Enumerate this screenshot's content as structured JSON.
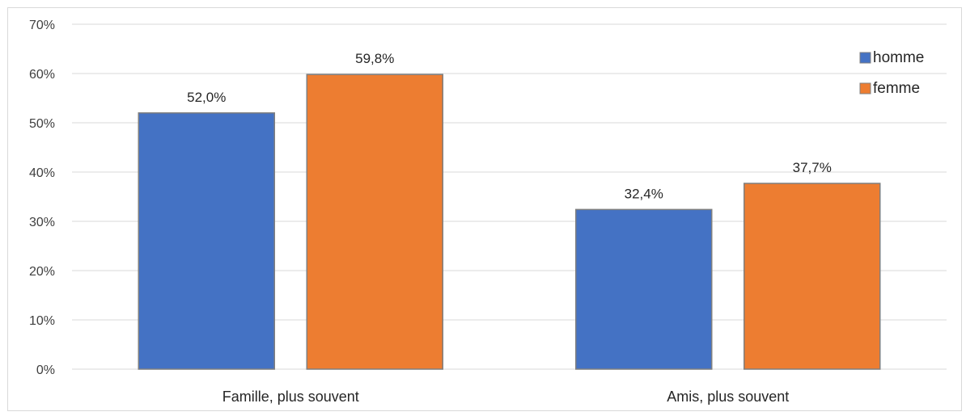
{
  "chart_data": {
    "type": "bar",
    "categories": [
      "Famille, plus souvent",
      "Amis, plus souvent"
    ],
    "series": [
      {
        "name": "homme",
        "values": [
          52.0,
          32.4
        ],
        "labels": [
          "52,0%",
          "32,4%"
        ],
        "color": "#4472C4"
      },
      {
        "name": "femme",
        "values": [
          59.8,
          37.7
        ],
        "labels": [
          "59,8%",
          "37,7%"
        ],
        "color": "#ED7D31"
      }
    ],
    "y_ticks": [
      "0%",
      "10%",
      "20%",
      "30%",
      "40%",
      "50%",
      "60%",
      "70%"
    ],
    "ylim": [
      0,
      70
    ],
    "grid": true,
    "legend_position": "top-right",
    "gridline_color": "#d9d9d9",
    "bar_border_color": "#7f7f7f"
  }
}
